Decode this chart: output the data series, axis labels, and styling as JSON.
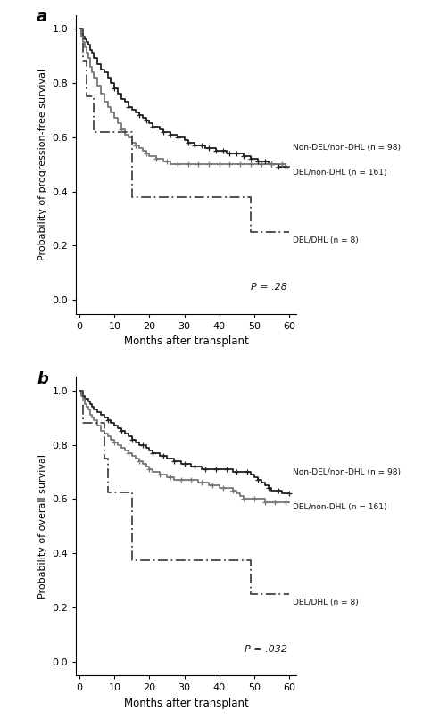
{
  "panel_a": {
    "title": "a",
    "ylabel": "Probability of progression-free survival",
    "xlabel": "Months after transplant",
    "pvalue": "P = .28",
    "ylim": [
      -0.05,
      1.05
    ],
    "xlim": [
      -1,
      62
    ],
    "yticks": [
      0.0,
      0.2,
      0.4,
      0.6,
      0.8,
      1.0
    ],
    "xticks": [
      0,
      10,
      20,
      30,
      40,
      50,
      60
    ],
    "curves": {
      "non_del_non_dhl": {
        "label": "Non-DEL/non-DHL (n = 98)",
        "linestyle": "solid",
        "color": "#222222",
        "linewidth": 1.3,
        "times": [
          0,
          0.5,
          1,
          1.5,
          2,
          2.5,
          3,
          3.5,
          4,
          5,
          6,
          7,
          8,
          9,
          10,
          11,
          12,
          13,
          14,
          15,
          16,
          17,
          18,
          19,
          20,
          21,
          22,
          23,
          24,
          25,
          26,
          27,
          28,
          29,
          30,
          31,
          32,
          33,
          34,
          35,
          36,
          37,
          38,
          39,
          40,
          41,
          42,
          43,
          44,
          45,
          46,
          47,
          48,
          49,
          50,
          51,
          52,
          53,
          54,
          55,
          56,
          57,
          58,
          59,
          60
        ],
        "survival": [
          1.0,
          0.98,
          0.97,
          0.96,
          0.95,
          0.94,
          0.92,
          0.91,
          0.89,
          0.87,
          0.85,
          0.84,
          0.82,
          0.8,
          0.78,
          0.76,
          0.74,
          0.73,
          0.71,
          0.7,
          0.69,
          0.68,
          0.67,
          0.66,
          0.65,
          0.64,
          0.64,
          0.63,
          0.62,
          0.62,
          0.61,
          0.61,
          0.6,
          0.6,
          0.59,
          0.58,
          0.58,
          0.57,
          0.57,
          0.57,
          0.56,
          0.56,
          0.56,
          0.55,
          0.55,
          0.55,
          0.54,
          0.54,
          0.54,
          0.54,
          0.54,
          0.53,
          0.53,
          0.52,
          0.52,
          0.51,
          0.51,
          0.51,
          0.5,
          0.5,
          0.5,
          0.49,
          0.49,
          0.49,
          0.49,
          0.49
        ],
        "censors": [
          10,
          14,
          17,
          19,
          21,
          24,
          26,
          28,
          31,
          33,
          35,
          37,
          39,
          41,
          43,
          45,
          47,
          49,
          51,
          53,
          55,
          57,
          59
        ]
      },
      "del_non_dhl": {
        "label": "DEL/non-DHL (n = 161)",
        "linestyle": "solid",
        "color": "#777777",
        "linewidth": 1.3,
        "times": [
          0,
          0.5,
          1,
          1.5,
          2,
          2.5,
          3,
          3.5,
          4,
          5,
          6,
          7,
          8,
          9,
          10,
          11,
          12,
          13,
          14,
          15,
          16,
          17,
          18,
          19,
          20,
          21,
          22,
          23,
          24,
          25,
          26,
          27,
          28,
          29,
          30,
          31,
          32,
          33,
          34,
          35,
          36,
          37,
          38,
          39,
          40,
          41,
          42,
          43,
          44,
          45,
          46,
          47,
          48,
          49,
          50,
          51,
          52,
          53,
          54,
          55,
          56,
          57,
          58,
          59,
          60
        ],
        "survival": [
          1.0,
          0.97,
          0.95,
          0.93,
          0.91,
          0.89,
          0.86,
          0.84,
          0.82,
          0.79,
          0.76,
          0.73,
          0.71,
          0.69,
          0.67,
          0.65,
          0.63,
          0.61,
          0.6,
          0.58,
          0.57,
          0.56,
          0.55,
          0.54,
          0.53,
          0.53,
          0.52,
          0.52,
          0.51,
          0.51,
          0.5,
          0.5,
          0.5,
          0.5,
          0.5,
          0.5,
          0.5,
          0.5,
          0.5,
          0.5,
          0.5,
          0.5,
          0.5,
          0.5,
          0.5,
          0.5,
          0.5,
          0.5,
          0.5,
          0.5,
          0.5,
          0.5,
          0.5,
          0.5,
          0.5,
          0.5,
          0.5,
          0.5,
          0.5,
          0.5,
          0.5,
          0.5,
          0.5,
          0.49,
          0.49,
          0.49
        ],
        "censors": [
          12,
          16,
          19,
          22,
          25,
          28,
          31,
          34,
          37,
          40,
          43,
          46,
          49,
          52,
          55,
          58
        ]
      },
      "del_dhl": {
        "label": "DEL/DHL (n = 8)",
        "linestyle": "dashdot",
        "color": "#444444",
        "linewidth": 1.3,
        "times": [
          0,
          1,
          2,
          3,
          4,
          5,
          6,
          7,
          8,
          10,
          12,
          15,
          16,
          48,
          49,
          60
        ],
        "survival": [
          1.0,
          0.88,
          0.75,
          0.75,
          0.62,
          0.62,
          0.62,
          0.62,
          0.62,
          0.62,
          0.62,
          0.38,
          0.38,
          0.38,
          0.25,
          0.25
        ],
        "censors": []
      }
    },
    "label_positions": {
      "non_del_non_dhl": [
        61,
        0.56
      ],
      "del_non_dhl": [
        61,
        0.47
      ],
      "del_dhl": [
        61,
        0.22
      ]
    }
  },
  "panel_b": {
    "title": "b",
    "ylabel": "Probability of overall survival",
    "xlabel": "Months after transplant",
    "pvalue": "P = .032",
    "ylim": [
      -0.05,
      1.05
    ],
    "xlim": [
      -1,
      62
    ],
    "yticks": [
      0.0,
      0.2,
      0.4,
      0.6,
      0.8,
      1.0
    ],
    "xticks": [
      0,
      10,
      20,
      30,
      40,
      50,
      60
    ],
    "curves": {
      "non_del_non_dhl": {
        "label": "Non-DEL/non-DHL (n = 98)",
        "linestyle": "solid",
        "color": "#222222",
        "linewidth": 1.3,
        "times": [
          0,
          0.5,
          1,
          1.5,
          2,
          2.5,
          3,
          3.5,
          4,
          5,
          6,
          7,
          8,
          9,
          10,
          11,
          12,
          13,
          14,
          15,
          16,
          17,
          18,
          19,
          20,
          21,
          22,
          23,
          24,
          25,
          26,
          27,
          28,
          29,
          30,
          31,
          32,
          33,
          34,
          35,
          36,
          37,
          38,
          39,
          40,
          41,
          42,
          43,
          44,
          45,
          46,
          47,
          48,
          49,
          50,
          51,
          52,
          53,
          54,
          55,
          56,
          57,
          58,
          59,
          60
        ],
        "survival": [
          1.0,
          0.99,
          0.98,
          0.97,
          0.97,
          0.96,
          0.95,
          0.94,
          0.93,
          0.92,
          0.91,
          0.9,
          0.89,
          0.88,
          0.87,
          0.86,
          0.85,
          0.84,
          0.83,
          0.82,
          0.81,
          0.8,
          0.8,
          0.79,
          0.78,
          0.77,
          0.77,
          0.76,
          0.76,
          0.75,
          0.75,
          0.74,
          0.74,
          0.73,
          0.73,
          0.73,
          0.72,
          0.72,
          0.72,
          0.71,
          0.71,
          0.71,
          0.71,
          0.71,
          0.71,
          0.71,
          0.71,
          0.71,
          0.7,
          0.7,
          0.7,
          0.7,
          0.7,
          0.69,
          0.68,
          0.67,
          0.66,
          0.65,
          0.64,
          0.63,
          0.63,
          0.63,
          0.62,
          0.62,
          0.62,
          0.62
        ],
        "censors": [
          8,
          12,
          15,
          18,
          21,
          24,
          27,
          30,
          33,
          36,
          39,
          42,
          45,
          48,
          51,
          54,
          57,
          60
        ]
      },
      "del_non_dhl": {
        "label": "DEL/non-DHL (n = 161)",
        "linestyle": "solid",
        "color": "#777777",
        "linewidth": 1.3,
        "times": [
          0,
          0.5,
          1,
          1.5,
          2,
          2.5,
          3,
          3.5,
          4,
          5,
          6,
          7,
          8,
          9,
          10,
          11,
          12,
          13,
          14,
          15,
          16,
          17,
          18,
          19,
          20,
          21,
          22,
          23,
          24,
          25,
          26,
          27,
          28,
          29,
          30,
          31,
          32,
          33,
          34,
          35,
          36,
          37,
          38,
          39,
          40,
          41,
          42,
          43,
          44,
          45,
          46,
          47,
          48,
          49,
          50,
          51,
          52,
          53,
          54,
          55,
          56,
          57,
          58,
          59,
          60
        ],
        "survival": [
          1.0,
          0.98,
          0.97,
          0.95,
          0.94,
          0.93,
          0.91,
          0.9,
          0.89,
          0.87,
          0.85,
          0.84,
          0.83,
          0.82,
          0.81,
          0.8,
          0.79,
          0.78,
          0.77,
          0.76,
          0.75,
          0.74,
          0.73,
          0.72,
          0.71,
          0.7,
          0.7,
          0.69,
          0.69,
          0.68,
          0.68,
          0.67,
          0.67,
          0.67,
          0.67,
          0.67,
          0.67,
          0.67,
          0.66,
          0.66,
          0.66,
          0.65,
          0.65,
          0.65,
          0.64,
          0.64,
          0.64,
          0.64,
          0.63,
          0.62,
          0.61,
          0.6,
          0.6,
          0.6,
          0.6,
          0.6,
          0.6,
          0.59,
          0.59,
          0.59,
          0.59,
          0.59,
          0.59,
          0.59,
          0.59,
          0.59
        ],
        "censors": [
          10,
          14,
          17,
          20,
          23,
          26,
          29,
          32,
          35,
          38,
          41,
          44,
          47,
          50,
          53,
          56,
          59
        ]
      },
      "del_dhl": {
        "label": "DEL/DHL (n = 8)",
        "linestyle": "dashdot",
        "color": "#444444",
        "linewidth": 1.3,
        "times": [
          0,
          1,
          2,
          3,
          4,
          5,
          6,
          7,
          8,
          10,
          12,
          15,
          16,
          48,
          49,
          60
        ],
        "survival": [
          1.0,
          0.88,
          0.88,
          0.88,
          0.88,
          0.88,
          0.88,
          0.75,
          0.625,
          0.625,
          0.625,
          0.375,
          0.375,
          0.375,
          0.25,
          0.25
        ],
        "censors": []
      }
    },
    "label_positions": {
      "non_del_non_dhl": [
        61,
        0.7
      ],
      "del_non_dhl": [
        61,
        0.57
      ],
      "del_dhl": [
        61,
        0.22
      ]
    }
  }
}
